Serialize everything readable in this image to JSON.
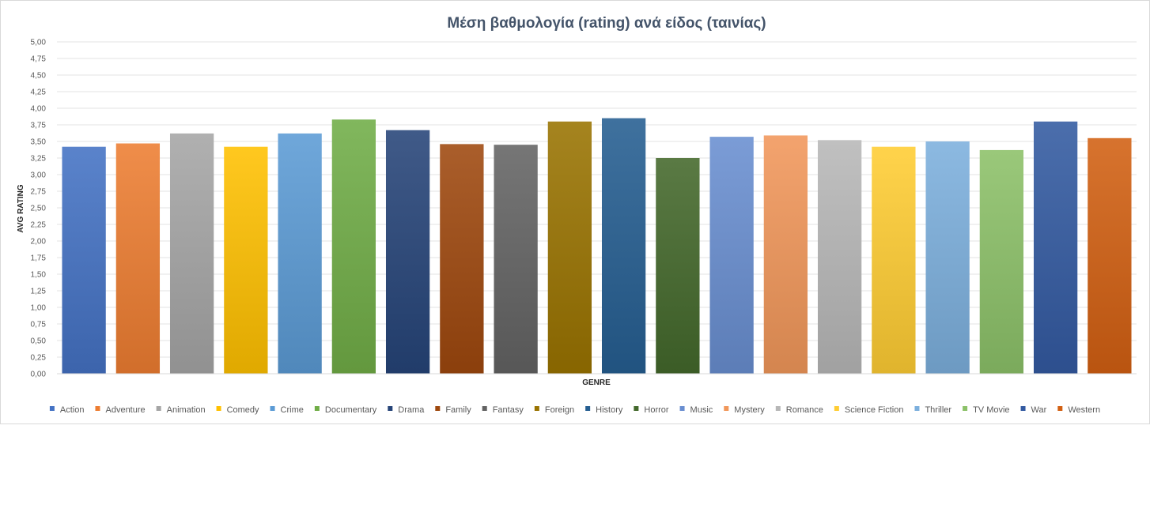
{
  "chart_data": {
    "type": "bar",
    "title": "Μέση βαθμολογία (rating) ανά είδος (ταινίας)",
    "xlabel": "GENRE",
    "ylabel": "AVG RATING",
    "ylim": [
      0,
      5
    ],
    "ytick_step": 0.25,
    "ytick_labels": [
      "0,00",
      "0,25",
      "0,50",
      "0,75",
      "1,00",
      "1,25",
      "1,50",
      "1,75",
      "2,00",
      "2,25",
      "2,50",
      "2,75",
      "3,00",
      "3,25",
      "3,50",
      "3,75",
      "4,00",
      "4,25",
      "4,50",
      "4,75",
      "5,00"
    ],
    "grid": true,
    "legend_position": "bottom",
    "categories": [
      "Action",
      "Adventure",
      "Animation",
      "Comedy",
      "Crime",
      "Documentary",
      "Drama",
      "Family",
      "Fantasy",
      "Foreign",
      "History",
      "Horror",
      "Music",
      "Mystery",
      "Romance",
      "Science Fiction",
      "Thriller",
      "TV Movie",
      "War",
      "Western"
    ],
    "values": [
      3.42,
      3.47,
      3.62,
      3.42,
      3.62,
      3.83,
      3.67,
      3.46,
      3.45,
      3.8,
      3.85,
      3.25,
      3.57,
      3.59,
      3.52,
      3.42,
      3.5,
      3.37,
      3.8,
      3.55
    ],
    "colors": [
      "#4472C4",
      "#ED7D31",
      "#A5A5A5",
      "#FFC000",
      "#5B9BD5",
      "#70AD47",
      "#264478",
      "#9E480E",
      "#636363",
      "#997300",
      "#255E91",
      "#43682B",
      "#698ED0",
      "#F1975A",
      "#B7B7B7",
      "#FFCD33",
      "#7CAFDD",
      "#8CC168",
      "#335AA1",
      "#D26012"
    ]
  }
}
